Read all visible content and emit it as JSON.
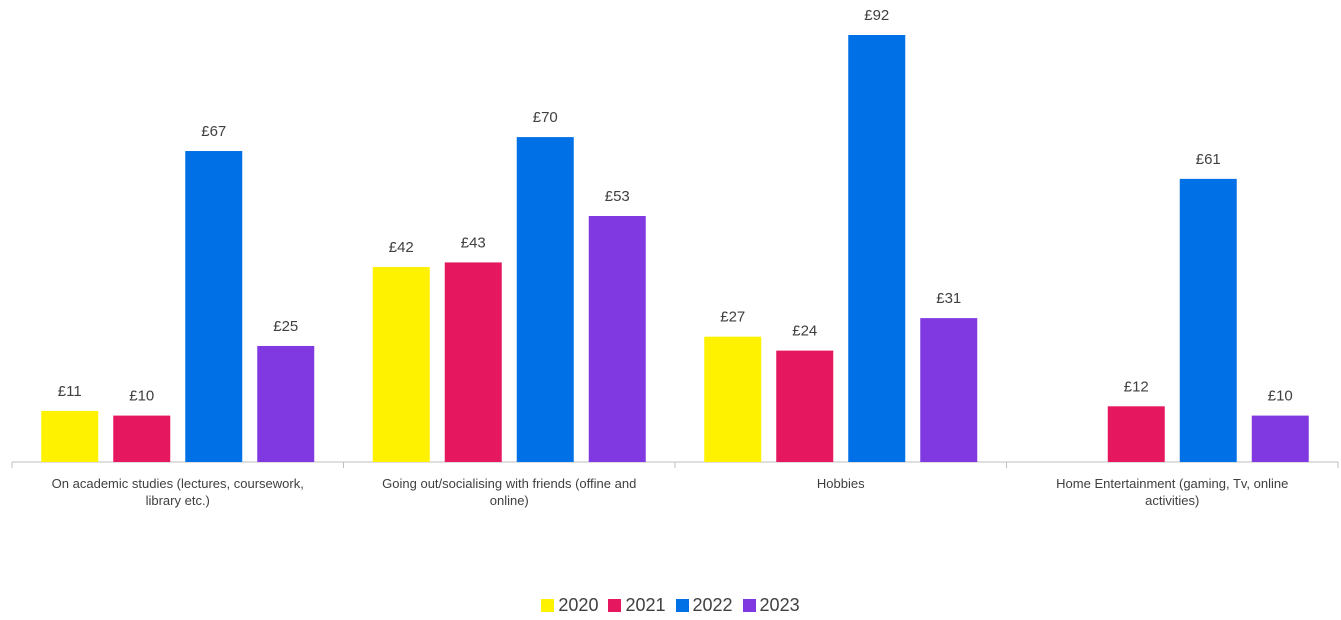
{
  "chart_data": {
    "type": "bar",
    "categories": [
      [
        "On academic studies (lectures, coursework,",
        "library etc.)"
      ],
      [
        "Going out/socialising with friends (offine and",
        "online)"
      ],
      [
        "Hobbies"
      ],
      [
        "Home Entertainment (gaming, Tv, online",
        "activities)"
      ]
    ],
    "series": [
      {
        "name": "2020",
        "color": "#FFF200",
        "values": [
          11,
          42,
          27,
          null
        ],
        "labels": [
          "£11",
          "£42",
          "£27",
          ""
        ]
      },
      {
        "name": "2021",
        "color": "#E5175E",
        "values": [
          10,
          43,
          24,
          12
        ],
        "labels": [
          "£10",
          "£43",
          "£24",
          "£12"
        ]
      },
      {
        "name": "2022",
        "color": "#0070E6",
        "values": [
          67,
          70,
          92,
          61
        ],
        "labels": [
          "£67",
          "£70",
          "£92",
          "£61"
        ]
      },
      {
        "name": "2023",
        "color": "#8039E0",
        "values": [
          25,
          53,
          31,
          10
        ],
        "labels": [
          "£25",
          "£53",
          "£31",
          "£10"
        ]
      }
    ],
    "ylim": [
      0,
      92
    ],
    "grid": false,
    "legend_position": "bottom"
  }
}
